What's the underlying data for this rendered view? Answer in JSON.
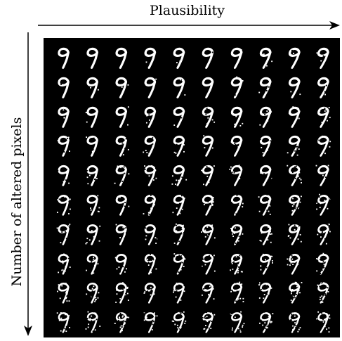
{
  "figure": {
    "x_axis_label": "Plausibility",
    "y_axis_label": "Number of altered pixels",
    "x_arrow_direction": "right",
    "y_arrow_direction": "down",
    "grid": {
      "rows": 10,
      "cols": 10,
      "digit_original": "9",
      "background_color": "#000000",
      "digit_color": "#ffffff",
      "description_note": "Each cell shows the same handwritten digit with progressively altered pixels"
    }
  }
}
